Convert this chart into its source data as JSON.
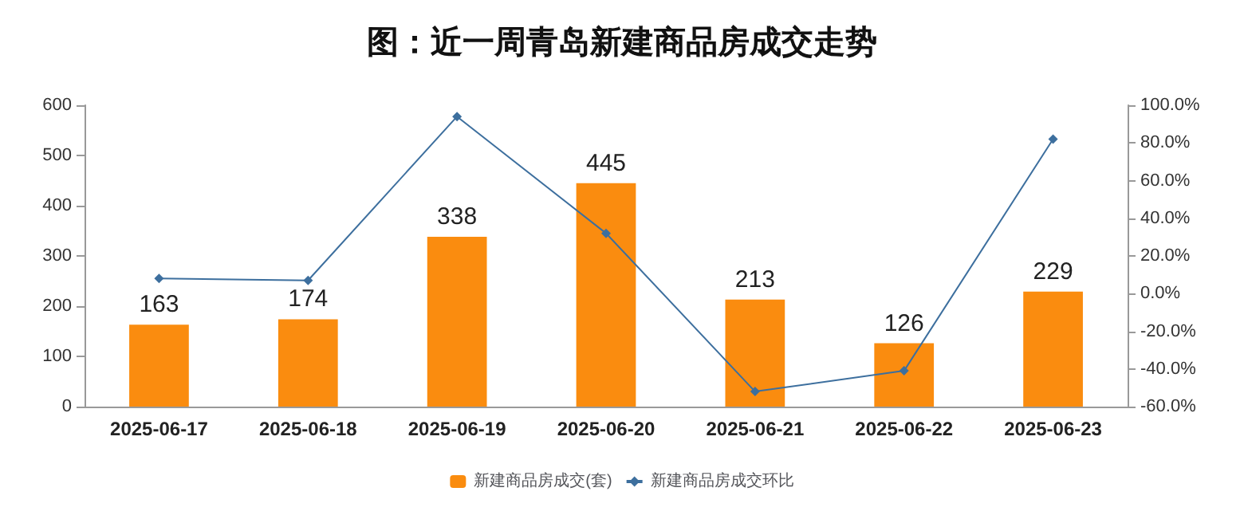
{
  "chart_data": {
    "type": "bar",
    "title": "图：近一周青岛新建商品房成交走势",
    "categories": [
      "2025-06-17",
      "2025-06-18",
      "2025-06-19",
      "2025-06-20",
      "2025-06-21",
      "2025-06-22",
      "2025-06-23"
    ],
    "series": [
      {
        "name": "新建商品房成交(套)",
        "color": "#fa8c0f",
        "values": [
          163,
          174,
          338,
          445,
          213,
          126,
          229
        ],
        "data_labels": true
      },
      {
        "name": "新建商品房成交环比",
        "type": "line",
        "axis": "y2",
        "color": "#3d6f9e",
        "marker": "diamond",
        "values": [
          8,
          7,
          94,
          32,
          -52,
          -41,
          82
        ]
      }
    ],
    "ylim": [
      0,
      600
    ],
    "yticks": [
      0,
      100,
      200,
      300,
      400,
      500,
      600
    ],
    "y2lim": [
      -60,
      100
    ],
    "y2ticks": [
      {
        "value": -60,
        "label": "-60.0%"
      },
      {
        "value": -40,
        "label": "-40.0%"
      },
      {
        "value": -20,
        "label": "-20.0%"
      },
      {
        "value": 0,
        "label": "0.0%"
      },
      {
        "value": 20,
        "label": "20.0%"
      },
      {
        "value": 40,
        "label": "40.0%"
      },
      {
        "value": 60,
        "label": "60.0%"
      },
      {
        "value": 80,
        "label": "80.0%"
      },
      {
        "value": 100,
        "label": "100.0%"
      }
    ],
    "legend": "bottom",
    "grid": false
  }
}
